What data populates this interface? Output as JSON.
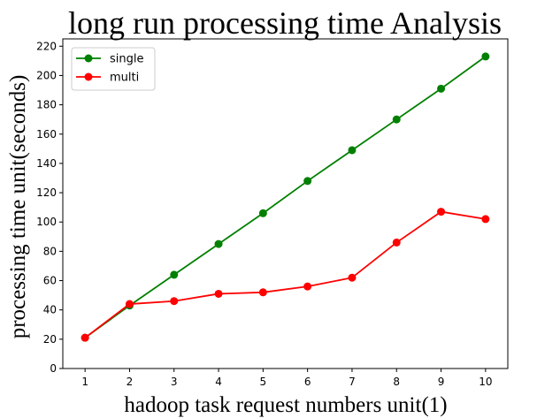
{
  "chart_data": {
    "type": "line",
    "title": "long run processing time Analysis",
    "xlabel": "hadoop task request numbers  unit(1)",
    "ylabel": "processing time  unit(seconds)",
    "x": [
      1,
      2,
      3,
      4,
      5,
      6,
      7,
      8,
      9,
      10
    ],
    "xlim": [
      0.5,
      10.5
    ],
    "ylim": [
      0,
      225
    ],
    "xticks": [
      1,
      2,
      3,
      4,
      5,
      6,
      7,
      8,
      9,
      10
    ],
    "yticks": [
      0,
      20,
      40,
      60,
      80,
      100,
      120,
      140,
      160,
      180,
      200,
      220
    ],
    "grid": false,
    "legend": "top-left",
    "series": [
      {
        "name": "single",
        "color": "#008000",
        "marker": "circle",
        "values": [
          21,
          43,
          64,
          85,
          106,
          128,
          149,
          170,
          191,
          213
        ]
      },
      {
        "name": "multi",
        "color": "#ff0000",
        "marker": "circle",
        "values": [
          21,
          44,
          46,
          51,
          52,
          56,
          62,
          86,
          107,
          102
        ]
      }
    ]
  }
}
